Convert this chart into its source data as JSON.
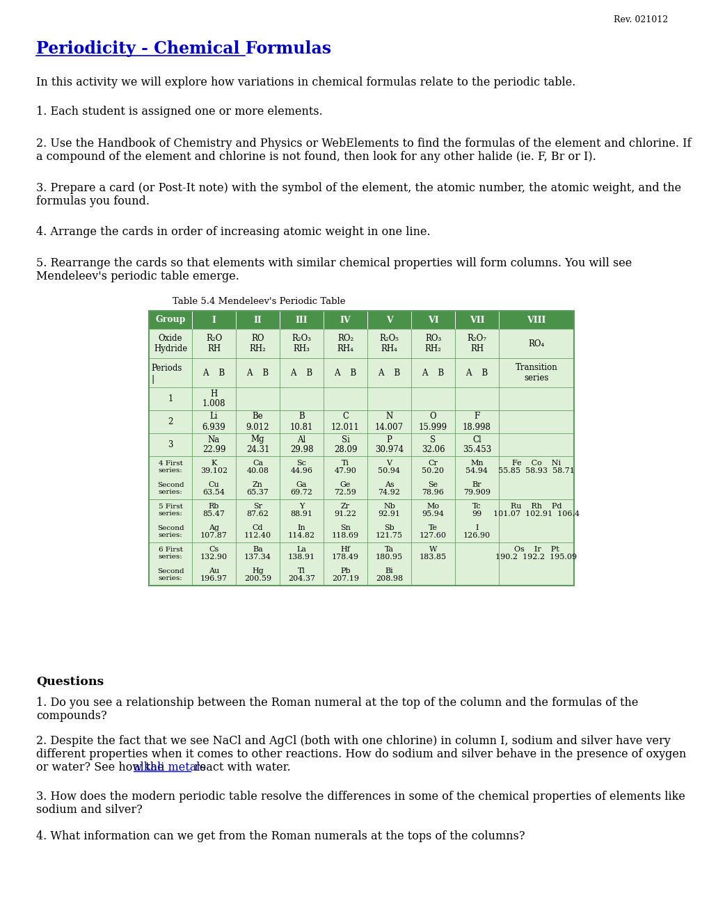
{
  "title": "Periodicity - Chemical Formulas",
  "rev": "Rev. 021012",
  "intro": "In this activity we will explore how variations in chemical formulas relate to the periodic table.",
  "item1": "1. Each student is assigned one or more elements.",
  "item2a": "2. Use the Handbook of Chemistry and Physics or WebElements to find the formulas of the element and chlorine. If",
  "item2b": "a compound of the element and chlorine is not found, then look for any other halide (ie. F, Br or I).",
  "item3a": "3. Prepare a card (or Post-It note) with the symbol of the element, the atomic number, the atomic weight, and the",
  "item3b": "formulas you found.",
  "item4": "4. Arrange the cards in order of increasing atomic weight in one line.",
  "item5a": "5. Rearrange the cards so that elements with similar chemical properties will form columns. You will see",
  "item5b": "Mendeleev's periodic table emerge.",
  "table_caption": "Table 5.4 Mendeleev's Periodic Table",
  "header_bg": "#4a914a",
  "header_text": "#ffffff",
  "cell_bg": "#dff0d8",
  "table_border_color": "#5a9a5a",
  "questions_header": "Questions",
  "q1a": "1. Do you see a relationship between the Roman numeral at the top of the column and the formulas of the",
  "q1b": "compounds?",
  "q2a": "2. Despite the fact that we see NaCl and AgCl (both with one chlorine) in column I, sodium and silver have very",
  "q2b": "different properties when it comes to other reactions. How do sodium and silver behave in the presence of oxygen",
  "q2c": "or water? See how the ",
  "q2link": "alkali metals",
  "q2d": " react with water.",
  "q3a": "3. How does the modern periodic table resolve the differences in some of the chemical properties of elements like",
  "q3b": "sodium and silver?",
  "q4": "4. What information can we get from the Roman numerals at the tops of the columns?"
}
